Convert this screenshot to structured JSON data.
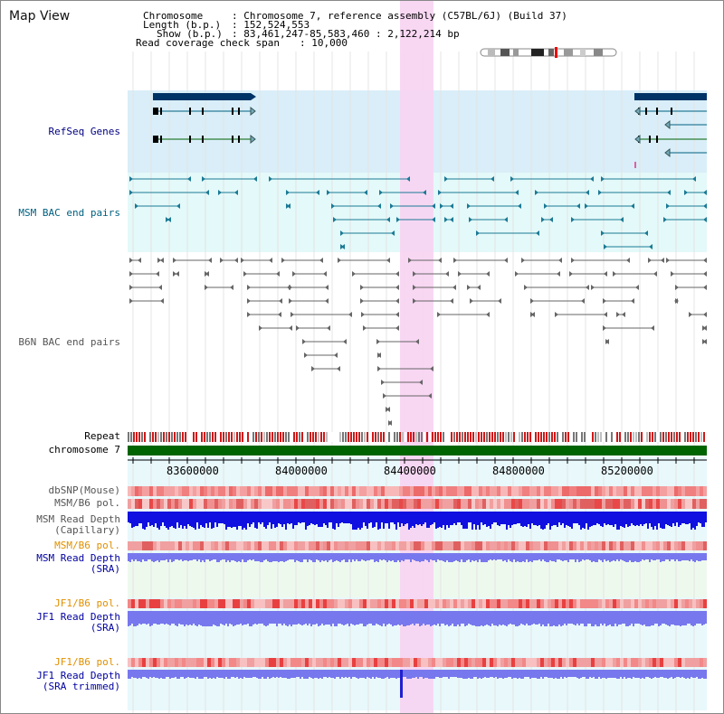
{
  "header": {
    "title": "Map View",
    "chromosome_key": "Chromosome",
    "chromosome_value": "Chromosome 7, reference assembly (C57BL/6J) (Build 37)",
    "length_key": "Length (b.p.)",
    "length_value": "152,524,553",
    "show_key": "Show (b.p.)",
    "show_value": "83,461,247-85,583,460 : 2,122,214 bp",
    "coverage_key": "Read coverage check span",
    "coverage_value": "10,000"
  },
  "tracks": {
    "refseq": "RefSeq Genes",
    "msm_bac": "MSM BAC end pairs",
    "b6n_bac": "B6N BAC end pairs",
    "repeat": "Repeat",
    "chromosome": "chromosome 7",
    "dbsnp": "dbSNP(Mouse)",
    "msm_b6_pol": "MSM/B6 pol.",
    "msm_depth_cap_1": "MSM Read Depth",
    "msm_depth_cap_2": "(Capillary)",
    "msm_b6_pol_sra": "MSM/B6 pol.",
    "msm_depth_sra_1": "MSM Read Depth",
    "msm_depth_sra_2": "(SRA)",
    "jf1_pol_1": "JF1/B6 pol.",
    "jf1_depth_1": "JF1 Read Depth",
    "jf1_depth_2": "(SRA)",
    "jf1_pol_2": "JF1/B6 pol.",
    "jf1_trim_1": "JF1 Read Depth",
    "jf1_trim_2": "(SRA trimmed)"
  },
  "axis": {
    "ticks": [
      "83600000",
      "84000000",
      "84400000",
      "84800000",
      "85200000"
    ]
  },
  "colors": {
    "refseq_bg": "#d9eef8",
    "msm_bg": "#e4f9f9",
    "highlight": "#f7d3f2",
    "chromosome_bar": "#006400",
    "refseq_label": "#000080",
    "msm_label": "#006080",
    "b6n_label": "#555555",
    "orange_label": "#e09000",
    "blue_label": "#0000a0",
    "depth_dark": "#1010e0",
    "depth_light": "#7878ee"
  }
}
